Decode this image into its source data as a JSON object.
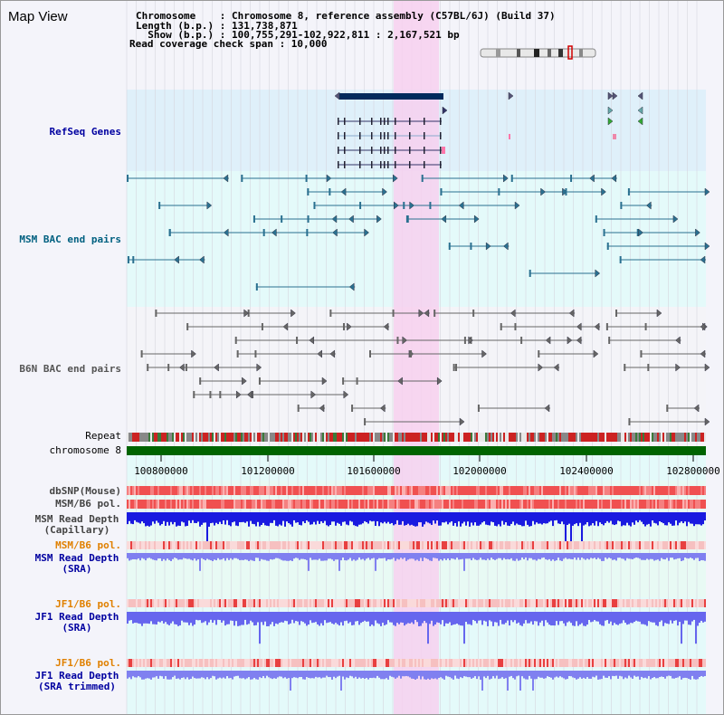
{
  "title": "Map View",
  "info": {
    "line1": "Chromosome    : Chromosome 8, reference assembly (C57BL/6J) (Build 37)",
    "line2": "Length (b.p.) : 131,738,871",
    "line3": "  Show (b.p.) : 100,755,291-102,922,811 : 2,167,521 bp",
    "line4": "Read coverage check span : 10,000"
  },
  "tracks": {
    "refseq": "RefSeq Genes",
    "msm_bac": "MSM BAC end pairs",
    "b6n_bac": "B6N BAC end pairs",
    "repeat": "Repeat",
    "chromosome": "chromosome 8"
  },
  "axis_ticks": [
    "100800000",
    "101200000",
    "101600000",
    "102000000",
    "102400000",
    "102800000"
  ],
  "lower_tracks": {
    "dbsnp": "dbSNP(Mouse)",
    "msm_b6_pol_1": "MSM/B6 pol.",
    "msm_read_depth_cap": "MSM Read Depth\n(Capillary)",
    "msm_b6_pol_2": "MSM/B6 pol.",
    "msm_read_depth_sra": "MSM Read Depth\n(SRA)",
    "jf1_b6_pol_1": "JF1/B6 pol.",
    "jf1_read_depth_sra": "JF1 Read Depth\n(SRA)",
    "jf1_b6_pol_2": "JF1/B6 pol.",
    "jf1_read_depth_trim": "JF1 Read Depth\n(SRA trimmed)"
  },
  "colors": {
    "refseq_bg": "#dff0fa",
    "msm_bg": "#e4fafa",
    "highlight": "#f7d0ef",
    "chromosome_bar": "#006400",
    "label_blue": "#0000a0",
    "label_orange": "#e08000",
    "label_msm": "#006080"
  }
}
